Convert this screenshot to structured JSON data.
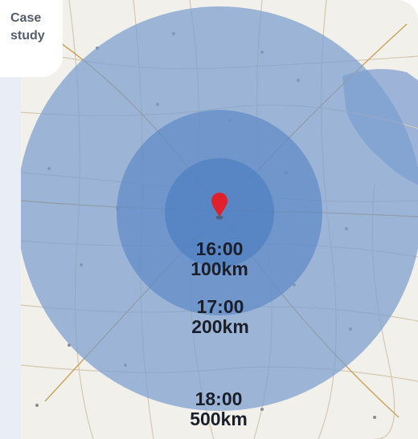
{
  "case_tag": {
    "line1": "Case",
    "line2": "study"
  },
  "rings": [
    {
      "time": "16:00",
      "distance": "100km"
    },
    {
      "time": "17:00",
      "distance": "200km"
    },
    {
      "time": "18:00",
      "distance": "500km"
    }
  ],
  "colors": {
    "outer_ring": "#7a9ed0",
    "middle_ring": "#5f8ac6",
    "inner_ring": "#4f7fc0",
    "marker": "#e0202a",
    "sea": "#9db4d8",
    "land": "#f2f0ea"
  },
  "icons": {
    "marker": "map-pin-icon"
  }
}
